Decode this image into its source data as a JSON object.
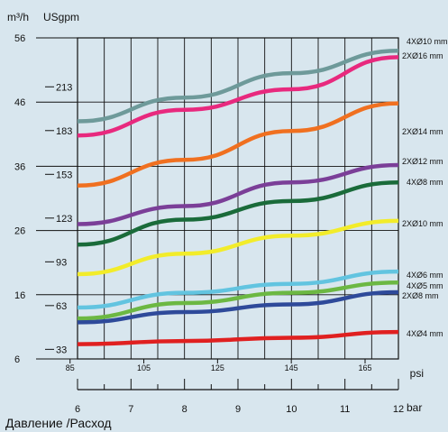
{
  "chart_data": {
    "type": "line",
    "title": "Давление /Расход",
    "y_units": {
      "primary": "m³/h",
      "secondary": "USgpm"
    },
    "y_primary_ticks": [
      56,
      46,
      36,
      26,
      16,
      6
    ],
    "y_secondary_ticks": [
      213,
      183,
      153,
      123,
      93,
      63,
      33
    ],
    "ylim": [
      6,
      56
    ],
    "x_psi_label": "psi",
    "x_psi_ticks": [
      85,
      105,
      125,
      145,
      165
    ],
    "x_bar_label": "bar",
    "x_bar_ticks": [
      6,
      7,
      8,
      9,
      10,
      11,
      12
    ],
    "xlim_bar": [
      6,
      12
    ],
    "grid": true,
    "series": [
      {
        "name": "4XØ10 mm",
        "color": "#6e9a9a",
        "x": [
          6,
          8,
          10,
          12
        ],
        "y": [
          43.0,
          46.7,
          50.5,
          54.0
        ]
      },
      {
        "name": "2XØ16 mm",
        "color": "#e8297e",
        "x": [
          6,
          8,
          10,
          12
        ],
        "y": [
          40.8,
          44.8,
          48.0,
          53.0
        ]
      },
      {
        "name": "2XØ14 mm",
        "color": "#f07020",
        "x": [
          6,
          8,
          10,
          12
        ],
        "y": [
          33.0,
          37.0,
          41.5,
          45.8
        ]
      },
      {
        "name": "2XØ12 mm",
        "color": "#7b3f98",
        "x": [
          6,
          8,
          10,
          12
        ],
        "y": [
          27.0,
          29.8,
          33.5,
          36.2
        ]
      },
      {
        "name": "4XØ8 mm",
        "color": "#1a6b3a",
        "x": [
          6,
          8,
          10,
          12
        ],
        "y": [
          23.8,
          27.7,
          30.6,
          33.5
        ]
      },
      {
        "name": "2XØ10 mm",
        "color": "#f2ec2a",
        "x": [
          6,
          8,
          10,
          12
        ],
        "y": [
          19.2,
          22.4,
          25.2,
          27.5
        ]
      },
      {
        "name": "4XØ6 mm",
        "color": "#62c4e0",
        "x": [
          6,
          8,
          10,
          12
        ],
        "y": [
          14.0,
          16.3,
          17.7,
          19.6
        ]
      },
      {
        "name": "4XØ5 mm",
        "color": "#6cb843",
        "x": [
          6,
          8,
          10,
          12
        ],
        "y": [
          12.3,
          14.7,
          16.3,
          17.9
        ]
      },
      {
        "name": "2XØ8 mm",
        "color": "#2e4a9a",
        "x": [
          6,
          8,
          10,
          12
        ],
        "y": [
          11.7,
          13.3,
          14.5,
          16.4
        ]
      },
      {
        "name": "4XØ4 mm",
        "color": "#e02020",
        "x": [
          6,
          8,
          10,
          12
        ],
        "y": [
          8.3,
          8.8,
          9.3,
          10.2
        ]
      }
    ]
  }
}
